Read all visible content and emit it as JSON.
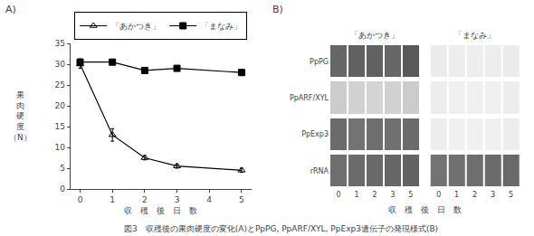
{
  "chart_data": [
    {
      "type": "line",
      "annotations": [
        "A)",
        "図3　収穫後の果肉硬度の変化(A)とPpPG, PpARF/XYL, PpExp3遺伝子の発現様式(B)"
      ],
      "xlabel": "収　穫　後　日　数",
      "ylabel": "果\n肉\n硬\n度\n（N）",
      "x": [
        0,
        1,
        2,
        3,
        5
      ],
      "xlim": [
        -0.3,
        5.3
      ],
      "xticks": [
        0,
        1,
        2,
        3,
        4,
        5
      ],
      "ylim": [
        0,
        35
      ],
      "yticks": [
        0,
        5,
        10,
        15,
        20,
        25,
        30,
        35
      ],
      "grid": false,
      "legend": "top",
      "series": [
        {
          "name": "「あかつき」",
          "color": "#000000",
          "marker": "triangle_open",
          "line_style": "solid",
          "values": [
            30.0,
            13.0,
            7.5,
            5.5,
            4.5
          ],
          "errors": [
            1.0,
            1.5,
            0.5,
            0.5,
            0.5
          ]
        },
        {
          "name": "「まなみ」",
          "color": "#000000",
          "marker": "square",
          "line_style": "solid",
          "values": [
            30.5,
            30.5,
            28.5,
            29.0,
            28.0
          ],
          "errors": [
            0.8,
            0.5,
            0.5,
            0.5,
            0.5
          ]
        }
      ]
    },
    {
      "type": "heatmap",
      "annotations": [
        "B)"
      ],
      "xlabel": "収　穫　後　日　数",
      "categories": [
        "0",
        "1",
        "2",
        "3",
        "5"
      ],
      "rows": [
        "PpPG",
        "PpARF/XYL",
        "PpExp3",
        "rRNA"
      ],
      "zlim": [
        0,
        1
      ],
      "series": [
        {
          "name": "「あかつき」",
          "cells": [
            [
              0.4,
              0.38,
              0.38,
              0.4,
              0.35
            ],
            [
              0.8,
              0.82,
              0.83,
              0.82,
              0.8
            ],
            [
              0.42,
              0.45,
              0.43,
              0.44,
              0.42
            ],
            [
              0.43,
              0.42,
              0.41,
              0.4,
              0.39
            ]
          ]
        },
        {
          "name": "「まなみ」",
          "cells": [
            [
              0.92,
              0.93,
              0.93,
              0.93,
              0.92
            ],
            [
              0.93,
              0.94,
              0.94,
              0.94,
              0.93
            ],
            [
              0.93,
              0.94,
              0.94,
              0.94,
              0.93
            ],
            [
              0.45,
              0.44,
              0.43,
              0.42,
              0.41
            ]
          ]
        }
      ]
    }
  ]
}
